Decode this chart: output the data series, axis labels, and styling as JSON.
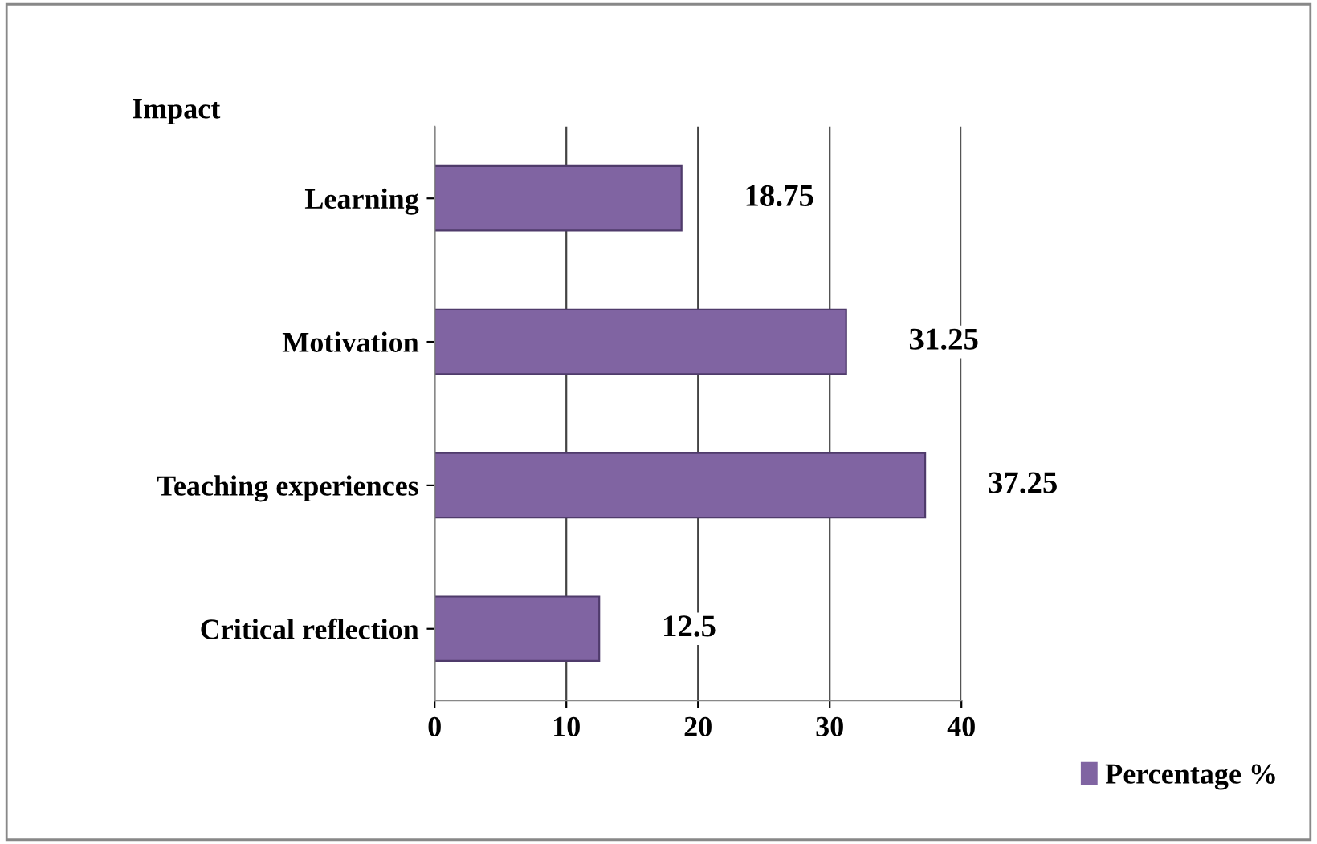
{
  "chart_data": {
    "type": "bar",
    "orientation": "horizontal",
    "title": "Impact",
    "categories": [
      "Learning",
      "Motivation",
      "Teaching experiences",
      "Critical reflection"
    ],
    "series": [
      {
        "name": "Percentage %",
        "color": "#8064a2",
        "values": [
          18.75,
          31.25,
          37.25,
          12.5
        ]
      }
    ],
    "xlim": [
      0,
      40
    ],
    "xticks": [
      0,
      10,
      20,
      30,
      40
    ],
    "grid": "x",
    "data_labels": true,
    "legend": "bottom right"
  }
}
